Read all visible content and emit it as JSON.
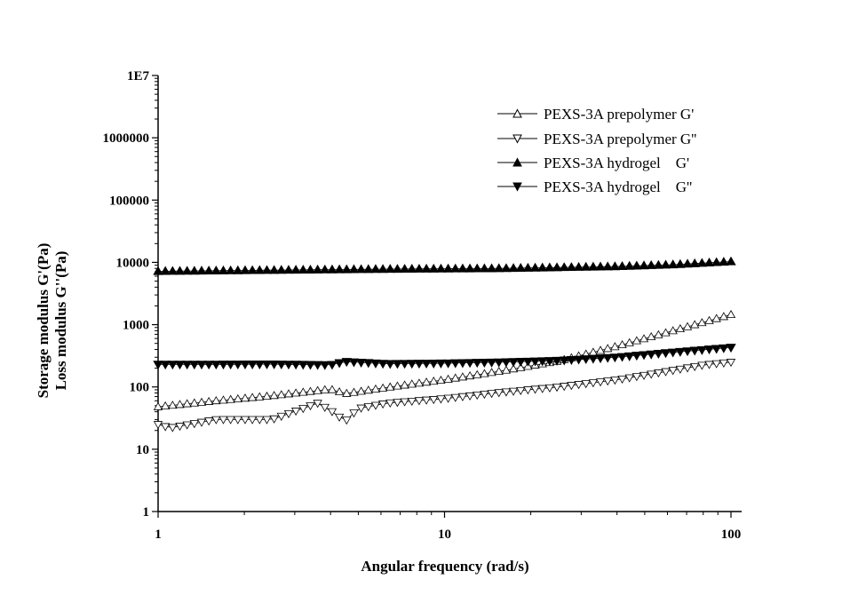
{
  "chart_data": {
    "type": "scatter",
    "x_scale": "log",
    "y_scale": "log",
    "xlabel": "Angular frequency (rad/s)",
    "ylabel_lines": [
      "Storage modulus G'(Pa)",
      "Loss modulus G''(Pa)"
    ],
    "xlim": [
      1,
      100
    ],
    "ylim": [
      1,
      10000000
    ],
    "x_ticks": [
      {
        "v": 1,
        "label": "1"
      },
      {
        "v": 10,
        "label": "10"
      },
      {
        "v": 100,
        "label": "100"
      }
    ],
    "y_ticks": [
      {
        "v": 1,
        "label": "1"
      },
      {
        "v": 10,
        "label": "10"
      },
      {
        "v": 100,
        "label": "100"
      },
      {
        "v": 1000,
        "label": "1000"
      },
      {
        "v": 10000,
        "label": "10000"
      },
      {
        "v": 100000,
        "label": "100000"
      },
      {
        "v": 1000000,
        "label": "1000000"
      },
      {
        "v": 10000000,
        "label": "1E7"
      }
    ],
    "grid": false,
    "legend_position": "top-right",
    "series": [
      {
        "name": "PEXS-3A prepolymer G'",
        "marker": "triangle-up",
        "filled": false,
        "x": [
          1,
          1.6,
          2.5,
          3.2,
          4.0,
          4.5,
          6.3,
          10,
          15.8,
          25,
          40,
          63,
          100
        ],
        "y": [
          48,
          60,
          72,
          82,
          92,
          78,
          98,
          130,
          180,
          260,
          450,
          800,
          1450
        ]
      },
      {
        "name": "PEXS-3A prepolymer G''",
        "marker": "triangle-down",
        "filled": false,
        "x": [
          1,
          1.1,
          1.6,
          2.5,
          3.2,
          3.6,
          4.0,
          4.5,
          5.0,
          6.3,
          10,
          15.8,
          25,
          40,
          63,
          80,
          100
        ],
        "y": [
          25,
          22,
          30,
          30,
          45,
          55,
          42,
          28,
          45,
          55,
          65,
          82,
          100,
          130,
          185,
          225,
          250
        ]
      },
      {
        "name": "PEXS-3A hydrogel    G'",
        "marker": "triangle-up",
        "filled": true,
        "x": [
          1,
          2.5,
          6.3,
          15.8,
          40,
          63,
          100
        ],
        "y": [
          7200,
          7500,
          7800,
          8000,
          8600,
          9200,
          10300
        ]
      },
      {
        "name": "PEXS-3A hydrogel    G''",
        "marker": "triangle-down",
        "filled": true,
        "x": [
          1,
          1.6,
          2.5,
          4.0,
          4.5,
          6.3,
          10,
          15.8,
          25,
          40,
          63,
          100
        ],
        "y": [
          230,
          230,
          232,
          225,
          255,
          235,
          240,
          250,
          265,
          300,
          360,
          430
        ]
      }
    ]
  }
}
